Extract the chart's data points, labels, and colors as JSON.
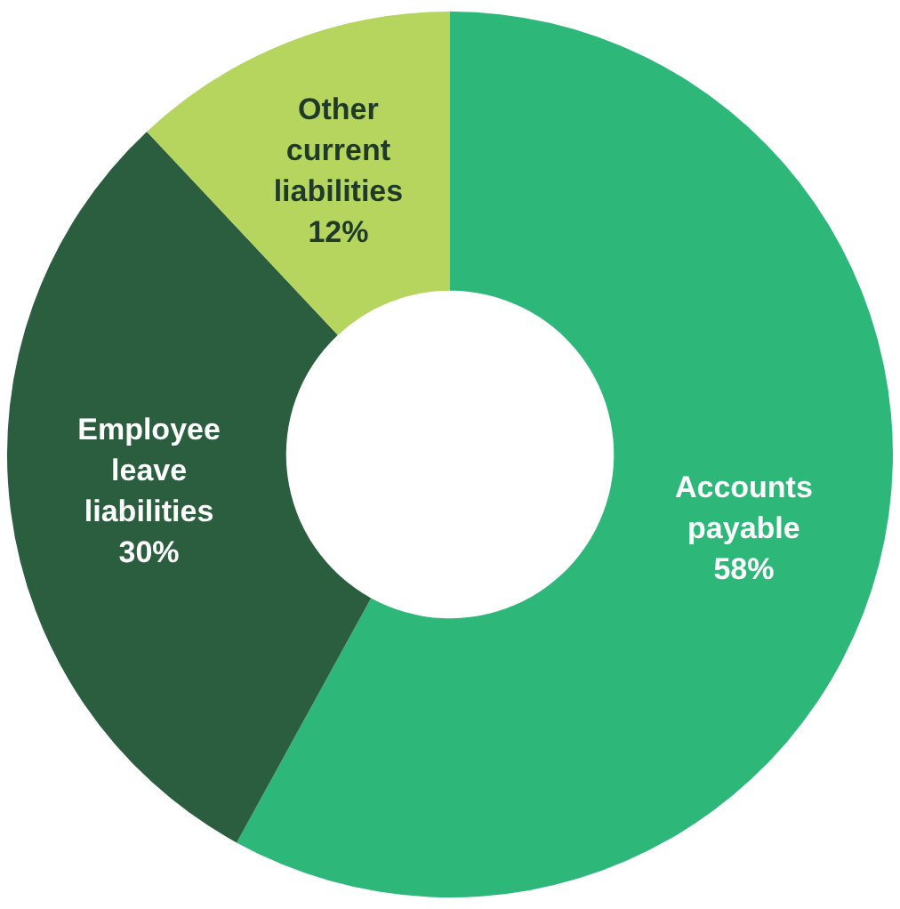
{
  "chart_data": {
    "type": "donut",
    "categories": [
      "Accounts payable",
      "Employee leave liabilities",
      "Other current liabilities"
    ],
    "values": [
      58,
      30,
      12
    ],
    "colors": [
      "#2db87a",
      "#2a5e3e",
      "#b5d55e"
    ],
    "value_labels": [
      "58%",
      "30%",
      "12%"
    ],
    "legend": false
  }
}
